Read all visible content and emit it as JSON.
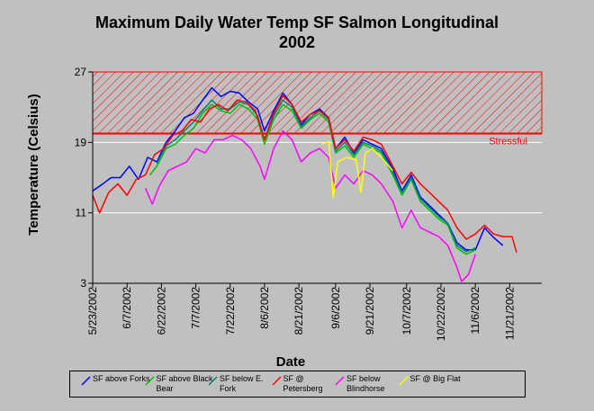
{
  "title_lines": [
    "Maximum Daily Water Temp SF Salmon Longitudinal",
    "2002"
  ],
  "colors": {
    "background": "#c0c0c0",
    "hatch": "#ff0000",
    "threshold_line": "#ff0000",
    "grid": "#ffffff"
  },
  "chart_data": {
    "type": "line",
    "title": "Maximum Daily Water Temp SF Salmon Longitudinal 2002",
    "xlabel": "Date",
    "ylabel": "Temperature (Celsius)",
    "ylim": [
      3,
      27
    ],
    "yticks": [
      3,
      11,
      19,
      27
    ],
    "xticks": [
      "5/23/2002",
      "6/7/2002",
      "6/22/2002",
      "7/7/2002",
      "7/22/2002",
      "8/6/2002",
      "8/21/2002",
      "9/6/2002",
      "9/21/2002",
      "10/7/2002",
      "10/22/2002",
      "11/6/2002",
      "11/21/2002"
    ],
    "xlim": [
      "5/23/2002",
      "12/5/2002"
    ],
    "grid": "horizontal",
    "legend_position": "bottom",
    "threshold": {
      "label": "Stressful",
      "value": 20,
      "upper": 27,
      "color": "#ff0000"
    },
    "series": [
      {
        "name": "SF above Forks",
        "color": "#0000ff",
        "points": [
          [
            "5/23/2002",
            13.5
          ],
          [
            "5/27/2002",
            14.2
          ],
          [
            "5/31/2002",
            15.0
          ],
          [
            "6/4/2002",
            15.0
          ],
          [
            "6/8/2002",
            16.3
          ],
          [
            "6/12/2002",
            14.8
          ],
          [
            "6/16/2002",
            17.3
          ],
          [
            "6/20/2002",
            16.8
          ],
          [
            "6/24/2002",
            19.0
          ],
          [
            "6/28/2002",
            20.3
          ],
          [
            "7/2/2002",
            21.8
          ],
          [
            "7/6/2002",
            22.3
          ],
          [
            "7/10/2002",
            23.8
          ],
          [
            "7/14/2002",
            25.2
          ],
          [
            "7/18/2002",
            24.2
          ],
          [
            "7/22/2002",
            24.8
          ],
          [
            "7/26/2002",
            24.6
          ],
          [
            "7/30/2002",
            23.6
          ],
          [
            "8/3/2002",
            22.8
          ],
          [
            "8/6/2002",
            20.3
          ],
          [
            "8/10/2002",
            22.6
          ],
          [
            "8/14/2002",
            24.6
          ],
          [
            "8/18/2002",
            23.3
          ],
          [
            "8/22/2002",
            21.0
          ],
          [
            "8/26/2002",
            22.2
          ],
          [
            "8/30/2002",
            22.8
          ],
          [
            "9/3/2002",
            21.8
          ],
          [
            "9/6/2002",
            18.3
          ],
          [
            "9/10/2002",
            19.6
          ],
          [
            "9/14/2002",
            17.8
          ],
          [
            "9/18/2002",
            19.3
          ],
          [
            "9/22/2002",
            18.8
          ],
          [
            "9/26/2002",
            18.3
          ],
          [
            "10/1/2002",
            16.0
          ],
          [
            "10/5/2002",
            13.5
          ],
          [
            "10/9/2002",
            15.3
          ],
          [
            "10/13/2002",
            12.8
          ],
          [
            "10/17/2002",
            11.8
          ],
          [
            "10/21/2002",
            10.8
          ],
          [
            "10/25/2002",
            9.8
          ],
          [
            "10/29/2002",
            7.6
          ],
          [
            "11/2/2002",
            6.8
          ],
          [
            "11/6/2002",
            6.8
          ],
          [
            "11/10/2002",
            9.3
          ],
          [
            "11/14/2002",
            8.2
          ],
          [
            "11/18/2002",
            7.3
          ]
        ]
      },
      {
        "name": "SF above Black Bear",
        "color": "#00c000",
        "points": [
          [
            "6/17/2002",
            15.3
          ],
          [
            "6/20/2002",
            16.3
          ],
          [
            "6/24/2002",
            18.3
          ],
          [
            "6/28/2002",
            18.8
          ],
          [
            "7/2/2002",
            19.8
          ],
          [
            "7/6/2002",
            20.6
          ],
          [
            "7/10/2002",
            22.3
          ],
          [
            "7/14/2002",
            23.3
          ],
          [
            "7/18/2002",
            22.6
          ],
          [
            "7/22/2002",
            22.3
          ],
          [
            "7/26/2002",
            23.3
          ],
          [
            "7/30/2002",
            22.8
          ],
          [
            "8/3/2002",
            21.6
          ],
          [
            "8/6/2002",
            18.8
          ],
          [
            "8/10/2002",
            21.6
          ],
          [
            "8/14/2002",
            23.3
          ],
          [
            "8/18/2002",
            22.6
          ],
          [
            "8/22/2002",
            20.6
          ],
          [
            "8/26/2002",
            21.6
          ],
          [
            "8/30/2002",
            22.3
          ],
          [
            "9/3/2002",
            21.3
          ],
          [
            "9/6/2002",
            17.8
          ],
          [
            "9/10/2002",
            18.6
          ],
          [
            "9/14/2002",
            17.3
          ],
          [
            "9/18/2002",
            18.8
          ],
          [
            "9/22/2002",
            18.3
          ],
          [
            "9/26/2002",
            17.8
          ],
          [
            "10/1/2002",
            15.3
          ],
          [
            "10/5/2002",
            13.0
          ],
          [
            "10/9/2002",
            14.8
          ],
          [
            "10/13/2002",
            12.3
          ],
          [
            "10/17/2002",
            11.3
          ],
          [
            "10/21/2002",
            10.3
          ],
          [
            "10/25/2002",
            9.6
          ],
          [
            "10/29/2002",
            7.0
          ],
          [
            "11/2/2002",
            6.3
          ],
          [
            "11/6/2002",
            6.8
          ]
        ]
      },
      {
        "name": "SF below E. Fork",
        "color": "#008080",
        "points": [
          [
            "6/20/2002",
            16.6
          ],
          [
            "6/24/2002",
            18.6
          ],
          [
            "6/28/2002",
            19.3
          ],
          [
            "7/2/2002",
            20.3
          ],
          [
            "7/6/2002",
            21.3
          ],
          [
            "7/10/2002",
            22.6
          ],
          [
            "7/14/2002",
            23.8
          ],
          [
            "7/18/2002",
            22.8
          ],
          [
            "7/22/2002",
            22.8
          ],
          [
            "7/26/2002",
            23.6
          ],
          [
            "7/30/2002",
            23.3
          ],
          [
            "8/3/2002",
            22.0
          ],
          [
            "8/6/2002",
            19.3
          ],
          [
            "8/10/2002",
            22.0
          ],
          [
            "8/14/2002",
            23.8
          ],
          [
            "8/18/2002",
            23.0
          ],
          [
            "8/22/2002",
            20.8
          ],
          [
            "8/26/2002",
            21.8
          ],
          [
            "8/30/2002",
            22.6
          ],
          [
            "9/3/2002",
            21.6
          ],
          [
            "9/6/2002",
            18.0
          ],
          [
            "9/10/2002",
            19.0
          ],
          [
            "9/14/2002",
            17.6
          ],
          [
            "9/18/2002",
            19.0
          ],
          [
            "9/22/2002",
            18.6
          ],
          [
            "9/26/2002",
            18.0
          ],
          [
            "10/1/2002",
            15.6
          ],
          [
            "10/5/2002",
            13.3
          ],
          [
            "10/9/2002",
            15.0
          ],
          [
            "10/13/2002",
            12.6
          ],
          [
            "10/17/2002",
            11.6
          ],
          [
            "10/21/2002",
            10.6
          ],
          [
            "10/25/2002",
            9.8
          ],
          [
            "10/29/2002",
            7.3
          ],
          [
            "11/2/2002",
            6.6
          ],
          [
            "11/6/2002",
            7.0
          ]
        ]
      },
      {
        "name": "SF @ Petersberg",
        "color": "#ff0000",
        "points": [
          [
            "5/23/2002",
            13.0
          ],
          [
            "5/26/2002",
            11.0
          ],
          [
            "5/30/2002",
            13.3
          ],
          [
            "6/3/2002",
            14.3
          ],
          [
            "6/7/2002",
            13.0
          ],
          [
            "6/11/2002",
            14.8
          ],
          [
            "6/15/2002",
            15.3
          ],
          [
            "6/19/2002",
            17.6
          ],
          [
            "6/23/2002",
            18.3
          ],
          [
            "6/27/2002",
            19.8
          ],
          [
            "7/1/2002",
            20.3
          ],
          [
            "7/5/2002",
            21.6
          ],
          [
            "7/9/2002",
            21.3
          ],
          [
            "7/13/2002",
            22.8
          ],
          [
            "7/17/2002",
            23.3
          ],
          [
            "7/21/2002",
            22.6
          ],
          [
            "7/25/2002",
            23.8
          ],
          [
            "7/29/2002",
            23.6
          ],
          [
            "8/2/2002",
            22.6
          ],
          [
            "8/6/2002",
            19.3
          ],
          [
            "8/10/2002",
            22.3
          ],
          [
            "8/14/2002",
            24.3
          ],
          [
            "8/18/2002",
            23.3
          ],
          [
            "8/22/2002",
            21.3
          ],
          [
            "8/26/2002",
            22.2
          ],
          [
            "8/30/2002",
            22.6
          ],
          [
            "9/3/2002",
            21.8
          ],
          [
            "9/6/2002",
            18.3
          ],
          [
            "9/10/2002",
            19.3
          ],
          [
            "9/14/2002",
            18.0
          ],
          [
            "9/18/2002",
            19.6
          ],
          [
            "9/22/2002",
            19.3
          ],
          [
            "9/26/2002",
            18.8
          ],
          [
            "10/1/2002",
            16.3
          ],
          [
            "10/5/2002",
            14.3
          ],
          [
            "10/9/2002",
            15.6
          ],
          [
            "10/13/2002",
            14.3
          ],
          [
            "10/17/2002",
            13.3
          ],
          [
            "10/21/2002",
            12.3
          ],
          [
            "10/25/2002",
            11.3
          ],
          [
            "10/29/2002",
            9.3
          ],
          [
            "11/2/2002",
            8.0
          ],
          [
            "11/6/2002",
            8.6
          ],
          [
            "11/10/2002",
            9.6
          ],
          [
            "11/14/2002",
            8.6
          ],
          [
            "11/18/2002",
            8.3
          ],
          [
            "11/22/2002",
            8.3
          ],
          [
            "11/24/2002",
            6.5
          ]
        ]
      },
      {
        "name": "SF below Blindhorse",
        "color": "#ff00ff",
        "points": [
          [
            "6/15/2002",
            13.8
          ],
          [
            "6/18/2002",
            12.0
          ],
          [
            "6/21/2002",
            14.0
          ],
          [
            "6/25/2002",
            15.8
          ],
          [
            "6/29/2002",
            16.3
          ],
          [
            "7/3/2002",
            16.8
          ],
          [
            "7/7/2002",
            18.3
          ],
          [
            "7/11/2002",
            17.8
          ],
          [
            "7/15/2002",
            19.3
          ],
          [
            "7/19/2002",
            19.3
          ],
          [
            "7/23/2002",
            19.8
          ],
          [
            "7/27/2002",
            19.3
          ],
          [
            "7/31/2002",
            18.3
          ],
          [
            "8/4/2002",
            16.3
          ],
          [
            "8/6/2002",
            14.8
          ],
          [
            "8/10/2002",
            18.3
          ],
          [
            "8/14/2002",
            20.3
          ],
          [
            "8/18/2002",
            19.3
          ],
          [
            "8/22/2002",
            16.8
          ],
          [
            "8/26/2002",
            17.8
          ],
          [
            "8/30/2002",
            18.3
          ],
          [
            "9/3/2002",
            17.3
          ],
          [
            "9/6/2002",
            13.8
          ],
          [
            "9/10/2002",
            15.3
          ],
          [
            "9/14/2002",
            14.3
          ],
          [
            "9/18/2002",
            15.8
          ],
          [
            "9/22/2002",
            15.3
          ],
          [
            "9/26/2002",
            14.3
          ],
          [
            "10/1/2002",
            12.3
          ],
          [
            "10/5/2002",
            9.3
          ],
          [
            "10/9/2002",
            11.3
          ],
          [
            "10/13/2002",
            9.3
          ],
          [
            "10/17/2002",
            8.8
          ],
          [
            "10/21/2002",
            8.3
          ],
          [
            "10/25/2002",
            7.3
          ],
          [
            "10/29/2002",
            4.8
          ],
          [
            "10/31/2002",
            3.2
          ],
          [
            "11/3/2002",
            4.0
          ],
          [
            "11/6/2002",
            6.3
          ]
        ]
      },
      {
        "name": "SF @ Big Flat",
        "color": "#ffff00",
        "points": [
          [
            "8/31/2002",
            18.8
          ],
          [
            "9/3/2002",
            19.1
          ],
          [
            "9/5/2002",
            12.8
          ],
          [
            "9/7/2002",
            16.8
          ],
          [
            "9/11/2002",
            17.3
          ],
          [
            "9/15/2002",
            17.0
          ],
          [
            "9/17/2002",
            13.3
          ],
          [
            "9/19/2002",
            17.8
          ],
          [
            "9/22/2002",
            18.3
          ],
          [
            "9/26/2002",
            17.3
          ],
          [
            "10/1/2002",
            15.8
          ]
        ]
      }
    ]
  },
  "legend": {
    "items": [
      {
        "label": "SF above Forks",
        "color": "#0000ff"
      },
      {
        "label": "SF above Black Bear",
        "color": "#00c000"
      },
      {
        "label": "SF below E. Fork",
        "color": "#008080"
      },
      {
        "label": "SF @ Petersberg",
        "color": "#ff0000"
      },
      {
        "label": "SF below Blindhorse",
        "color": "#ff00ff"
      },
      {
        "label": "SF @ Big Flat",
        "color": "#ffff00"
      }
    ]
  }
}
